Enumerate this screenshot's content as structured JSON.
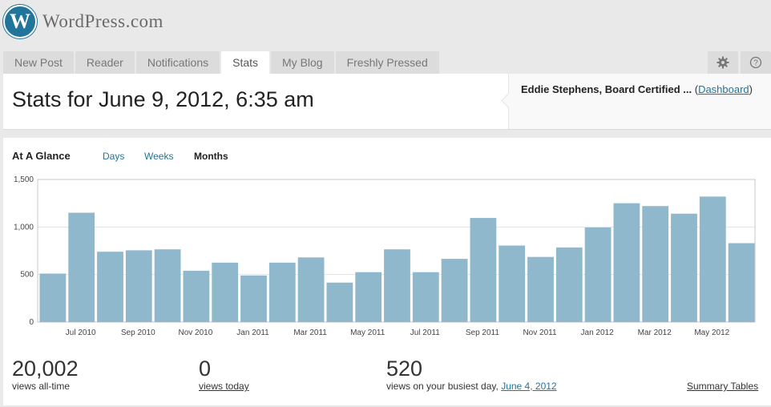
{
  "logo": {
    "mark": "W",
    "text": "WordPress.com"
  },
  "tabs": [
    "New Post",
    "Reader",
    "Notifications",
    "Stats",
    "My Blog",
    "Freshly Pressed"
  ],
  "header": {
    "title": "Stats for June 9, 2012, 6:35 am",
    "blog_name": "Eddie Stephens, Board Certified ...",
    "paren_open": "(",
    "dashboard_link": "Dashboard",
    "paren_close": ")"
  },
  "glance": {
    "heading": "At A Glance",
    "periods": [
      "Days",
      "Weeks",
      "Months"
    ],
    "selected": "Months"
  },
  "chart_data": {
    "type": "bar",
    "categories": [
      "Jun 2010",
      "Jul 2010",
      "Aug 2010",
      "Sep 2010",
      "Oct 2010",
      "Nov 2010",
      "Dec 2010",
      "Jan 2011",
      "Feb 2011",
      "Mar 2011",
      "Apr 2011",
      "May 2011",
      "Jun 2011",
      "Jul 2011",
      "Aug 2011",
      "Sep 2011",
      "Oct 2011",
      "Nov 2011",
      "Dec 2011",
      "Jan 2012",
      "Feb 2012",
      "Mar 2012",
      "Apr 2012",
      "May 2012",
      "Jun 2012"
    ],
    "values": [
      510,
      1150,
      740,
      755,
      765,
      540,
      625,
      490,
      625,
      680,
      415,
      525,
      765,
      525,
      665,
      1095,
      805,
      685,
      785,
      995,
      1250,
      1220,
      1140,
      1320,
      830
    ],
    "x_tick_labels": [
      "Jul 2010",
      "Sep 2010",
      "Nov 2010",
      "Jan 2011",
      "Mar 2011",
      "May 2011",
      "Jul 2011",
      "Sep 2011",
      "Nov 2011",
      "Jan 2012",
      "Mar 2012",
      "May 2012"
    ],
    "y_tick_labels": [
      "0",
      "500",
      "1,000",
      "1,500"
    ],
    "ylim": [
      0,
      1500
    ],
    "y_ticks": [
      0,
      500,
      1000,
      1500
    ],
    "bar_color": "#8fb8cd",
    "grid": true
  },
  "summary": {
    "all_time_value": "20,002",
    "all_time_label": "views all-time",
    "today_value": "0",
    "today_label": "views today",
    "busiest_value": "520",
    "busiest_label": "views on your busiest day,",
    "busiest_date": "June 4, 2012",
    "summary_tables": "Summary Tables"
  },
  "colors": {
    "accent": "#21759b",
    "bar": "#8fb8cd"
  }
}
